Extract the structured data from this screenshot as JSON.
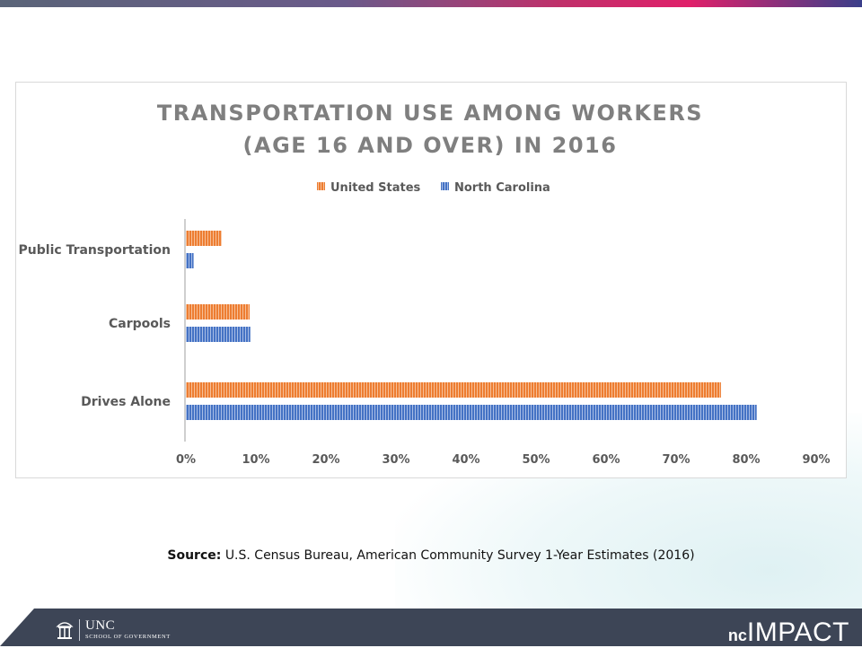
{
  "colors": {
    "us": "#ed7d31",
    "nc": "#4472c4",
    "title": "#7f7f7f",
    "labels": "#595959",
    "footer": "#3d4556"
  },
  "chart_data": {
    "type": "bar",
    "orientation": "horizontal",
    "title_lines": [
      "TRANSPORTATION USE AMONG WORKERS",
      "(AGE 16 AND OVER) IN 2016"
    ],
    "categories": [
      "Public Transportation",
      "Carpools",
      "Drives Alone"
    ],
    "series": [
      {
        "name": "United States",
        "values": [
          5.1,
          9.1,
          76.4
        ]
      },
      {
        "name": "North Carolina",
        "values": [
          1.1,
          9.2,
          81.5
        ]
      }
    ],
    "xlim": [
      0,
      90
    ],
    "xticks": [
      "0%",
      "10%",
      "20%",
      "30%",
      "40%",
      "50%",
      "60%",
      "70%",
      "80%",
      "90%"
    ],
    "xlabel": "",
    "ylabel": "",
    "legend_position": "top",
    "grid": false
  },
  "source": {
    "label": "Source:",
    "text": "U.S. Census Bureau, American Community Survey 1-Year Estimates (2016)"
  },
  "footer": {
    "org_name": "UNC",
    "org_sub": "SCHOOL OF GOVERNMENT",
    "brand_prefix": "nc",
    "brand_main": "IMPACT"
  }
}
